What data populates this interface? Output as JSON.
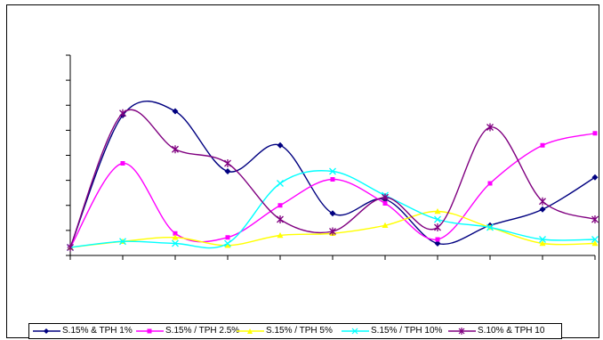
{
  "chart_data": {
    "type": "line",
    "title": "",
    "xlabel": "",
    "ylabel": "",
    "x": [
      1,
      2,
      3,
      4,
      5,
      6,
      7,
      8,
      9,
      10,
      11
    ],
    "ylim": [
      0,
      10
    ],
    "grid": false,
    "legend_position": "bottom",
    "series": [
      {
        "name": "S.15% & TPH 1%",
        "color": "#000080",
        "marker": "diamond",
        "values": [
          0.4,
          7.0,
          7.2,
          4.2,
          5.5,
          2.1,
          2.8,
          0.6,
          1.5,
          2.3,
          3.9
        ]
      },
      {
        "name": "S.15% / TPH 2.5%",
        "color": "#ff00ff",
        "marker": "square",
        "values": [
          0.4,
          4.6,
          1.1,
          0.9,
          2.5,
          3.8,
          2.6,
          0.8,
          3.6,
          5.5,
          6.1
        ]
      },
      {
        "name": "S.15% / TPH 5%",
        "color": "#ffff00",
        "marker": "triangle",
        "values": [
          0.4,
          0.7,
          0.9,
          0.5,
          1.0,
          1.1,
          1.5,
          2.2,
          1.4,
          0.6,
          0.6
        ]
      },
      {
        "name": "S.15% / TPH 10%",
        "color": "#00ffff",
        "marker": "x",
        "values": [
          0.4,
          0.7,
          0.6,
          0.6,
          3.6,
          4.2,
          3.0,
          1.8,
          1.4,
          0.8,
          0.8
        ]
      },
      {
        "name": "S.10% & TPH 10",
        "color": "#800080",
        "marker": "star",
        "values": [
          0.4,
          7.1,
          5.3,
          4.6,
          1.8,
          1.2,
          2.9,
          1.4,
          6.4,
          2.7,
          1.8
        ]
      }
    ]
  }
}
